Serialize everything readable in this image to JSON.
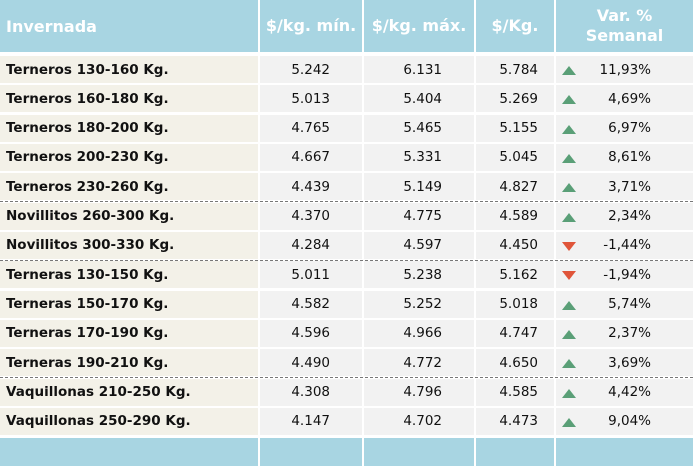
{
  "table": {
    "headers": [
      "Invernada",
      "$/kg. mín.",
      "$/kg. máx.",
      "$/Kg.",
      "Var. % Semanal"
    ],
    "groups": [
      {
        "rows": [
          {
            "cells": [
              "Terneros 130-160 Kg.",
              "5.242",
              "6.131",
              "5.784",
              "11,93%"
            ],
            "arrow": "up"
          },
          {
            "cells": [
              "Terneros 160-180 Kg.",
              "5.013",
              "5.404",
              "5.269",
              "4,69%"
            ],
            "arrow": "up"
          },
          {
            "cells": [
              "Terneros 180-200 Kg.",
              "4.765",
              "5.465",
              "5.155",
              "6,97%"
            ],
            "arrow": "up"
          },
          {
            "cells": [
              "Terneros 200-230 Kg.",
              "4.667",
              "5.331",
              "5.045",
              "8,61%"
            ],
            "arrow": "up"
          },
          {
            "cells": [
              "Terneros 230-260 Kg.",
              "4.439",
              "5.149",
              "4.827",
              "3,71%"
            ],
            "arrow": "up"
          }
        ]
      },
      {
        "rows": [
          {
            "cells": [
              "Novillitos 260-300 Kg.",
              "4.370",
              "4.775",
              "4.589",
              "2,34%"
            ],
            "arrow": "up"
          },
          {
            "cells": [
              "Novillitos 300-330 Kg.",
              "4.284",
              "4.597",
              "4.450",
              "-1,44%"
            ],
            "arrow": "down"
          }
        ]
      },
      {
        "rows": [
          {
            "cells": [
              "Terneras 130-150 Kg.",
              "5.011",
              "5.238",
              "5.162",
              "-1,94%"
            ],
            "arrow": "down"
          },
          {
            "cells": [
              "Terneras 150-170 Kg.",
              "4.582",
              "5.252",
              "5.018",
              "5,74%"
            ],
            "arrow": "up"
          },
          {
            "cells": [
              "Terneras 170-190 Kg.",
              "4.596",
              "4.966",
              "4.747",
              "2,37%"
            ],
            "arrow": "up"
          },
          {
            "cells": [
              "Terneras 190-210 Kg.",
              "4.490",
              "4.772",
              "4.650",
              "3,69%"
            ],
            "arrow": "up"
          }
        ]
      },
      {
        "rows": [
          {
            "cells": [
              "Vaquillonas 210-250 Kg.",
              "4.308",
              "4.796",
              "4.585",
              "4,42%"
            ],
            "arrow": "up"
          },
          {
            "cells": [
              "Vaquillonas 250-290 Kg.",
              "4.147",
              "4.702",
              "4.473",
              "9,04%"
            ],
            "arrow": "up"
          }
        ]
      }
    ]
  }
}
